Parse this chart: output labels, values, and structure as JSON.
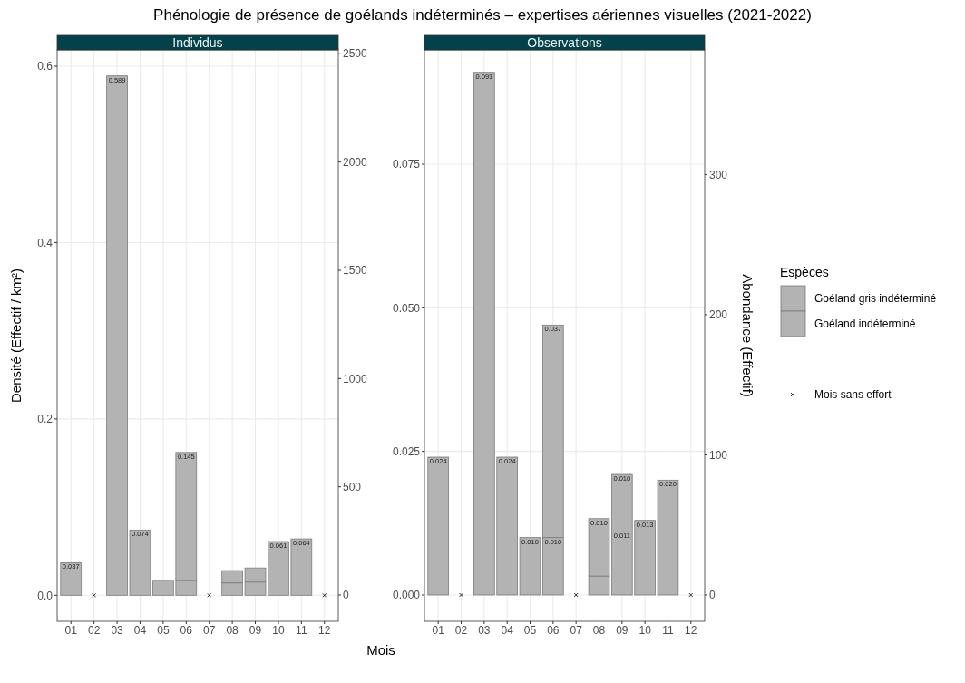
{
  "chart_data": [
    {
      "type": "bar",
      "title": "Phénologie de présence de goélands indéterminés – expertises aériennes visuelles (2021-2022)",
      "subtitle": "Individus",
      "xlabel": "Mois",
      "ylabel": "Densité (Effectif / km²)",
      "categories": [
        "01",
        "02",
        "03",
        "04",
        "05",
        "06",
        "07",
        "08",
        "09",
        "10",
        "11",
        "12"
      ],
      "stacked": true,
      "ylim": [
        -0.0295,
        0.6185
      ],
      "yticks": [
        {
          "value": 0,
          "label": "0.0"
        },
        {
          "value": 0.2,
          "label": "0.2"
        },
        {
          "value": 0.4,
          "label": "0.4"
        },
        {
          "value": 0.6,
          "label": "0.6"
        }
      ],
      "y2lim": [
        -121.5,
        2518
      ],
      "y2ticks": [
        0,
        500,
        1000,
        1500,
        2000,
        2500
      ],
      "grid": true,
      "legend": false,
      "series": [
        {
          "color": "#b3b3b3",
          "values": [
            null,
            null,
            null,
            null,
            null,
            0.017,
            null,
            0.014,
            0.015,
            null,
            null,
            null
          ],
          "value_labels": [
            null,
            null,
            null,
            null,
            null,
            null,
            null,
            null,
            null,
            null,
            null,
            null
          ]
        },
        {
          "color": "#b3b3b3",
          "values": [
            0.037,
            null,
            0.589,
            0.074,
            0.017,
            0.145,
            null,
            0.014,
            0.016,
            0.061,
            0.064,
            null
          ],
          "value_labels": [
            "0.037",
            null,
            "0.589",
            "0.074",
            null,
            "0.145",
            null,
            null,
            null,
            "0.061",
            "0.064",
            null
          ]
        },
        {
          "type": "scatter",
          "color": "#000000",
          "marker": "cross",
          "x": [
            "02",
            "07",
            "12"
          ],
          "values": [
            0,
            0,
            0
          ]
        }
      ]
    },
    {
      "type": "bar",
      "subtitle": "Observations",
      "y2label": "Abondance (Effectif)",
      "legend_title": "Espèces",
      "categories": [
        "01",
        "02",
        "03",
        "04",
        "05",
        "06",
        "07",
        "08",
        "09",
        "10",
        "11",
        "12"
      ],
      "stacked": true,
      "ylim": [
        -0.00458,
        0.0949
      ],
      "yticks": [
        {
          "value": 0,
          "label": "0.000"
        },
        {
          "value": 0.025,
          "label": "0.025"
        },
        {
          "value": 0.05,
          "label": "0.050"
        },
        {
          "value": 0.075,
          "label": "0.075"
        }
      ],
      "y2lim": [
        -18.8,
        389
      ],
      "y2ticks": [
        0,
        100,
        200,
        300
      ],
      "grid": true,
      "legend": "right",
      "series": [
        {
          "name": "Goéland indéterminé",
          "color": "#b3b3b3",
          "values": [
            null,
            null,
            null,
            null,
            null,
            0.01,
            null,
            0.0033,
            0.011,
            null,
            null,
            null
          ],
          "value_labels": [
            null,
            null,
            null,
            null,
            null,
            "0.010",
            null,
            null,
            "0.011",
            null,
            null,
            null
          ]
        },
        {
          "name": "Goéland gris indéterminé",
          "color": "#b3b3b3",
          "values": [
            0.024,
            null,
            0.091,
            0.024,
            0.01,
            0.037,
            null,
            0.01,
            0.01,
            0.013,
            0.02,
            null
          ],
          "value_labels": [
            "0.024",
            null,
            "0.091",
            "0.024",
            "0.010",
            "0.037",
            null,
            "0.010",
            "0.010",
            "0.013",
            "0.020",
            null
          ]
        },
        {
          "name": "Mois sans effort",
          "type": "scatter",
          "color": "#000000",
          "marker": "cross",
          "x": [
            "02",
            "07",
            "12"
          ],
          "values": [
            0,
            0,
            0
          ]
        }
      ]
    }
  ]
}
